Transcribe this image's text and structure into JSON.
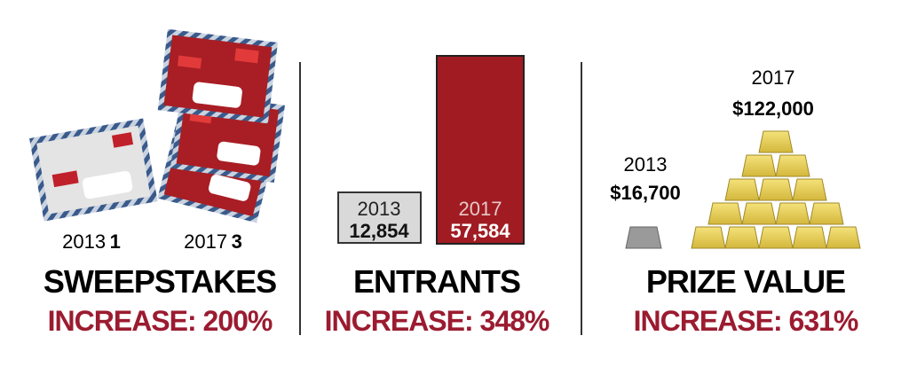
{
  "panels": [
    {
      "title": "SWEEPSTAKES",
      "increase": "INCREASE: 200%",
      "items": [
        {
          "year": "2013",
          "value": "1"
        },
        {
          "year": "2017",
          "value": "3"
        }
      ]
    },
    {
      "title": "ENTRANTS",
      "increase": "INCREASE: 348%",
      "items": [
        {
          "year": "2013",
          "value": "12,854"
        },
        {
          "year": "2017",
          "value": "57,584"
        }
      ]
    },
    {
      "title": "PRIZE VALUE",
      "increase": "INCREASE: 631%",
      "items": [
        {
          "year": "2013",
          "value": "$16,700"
        },
        {
          "year": "2017",
          "value": "$122,000"
        }
      ]
    }
  ]
}
